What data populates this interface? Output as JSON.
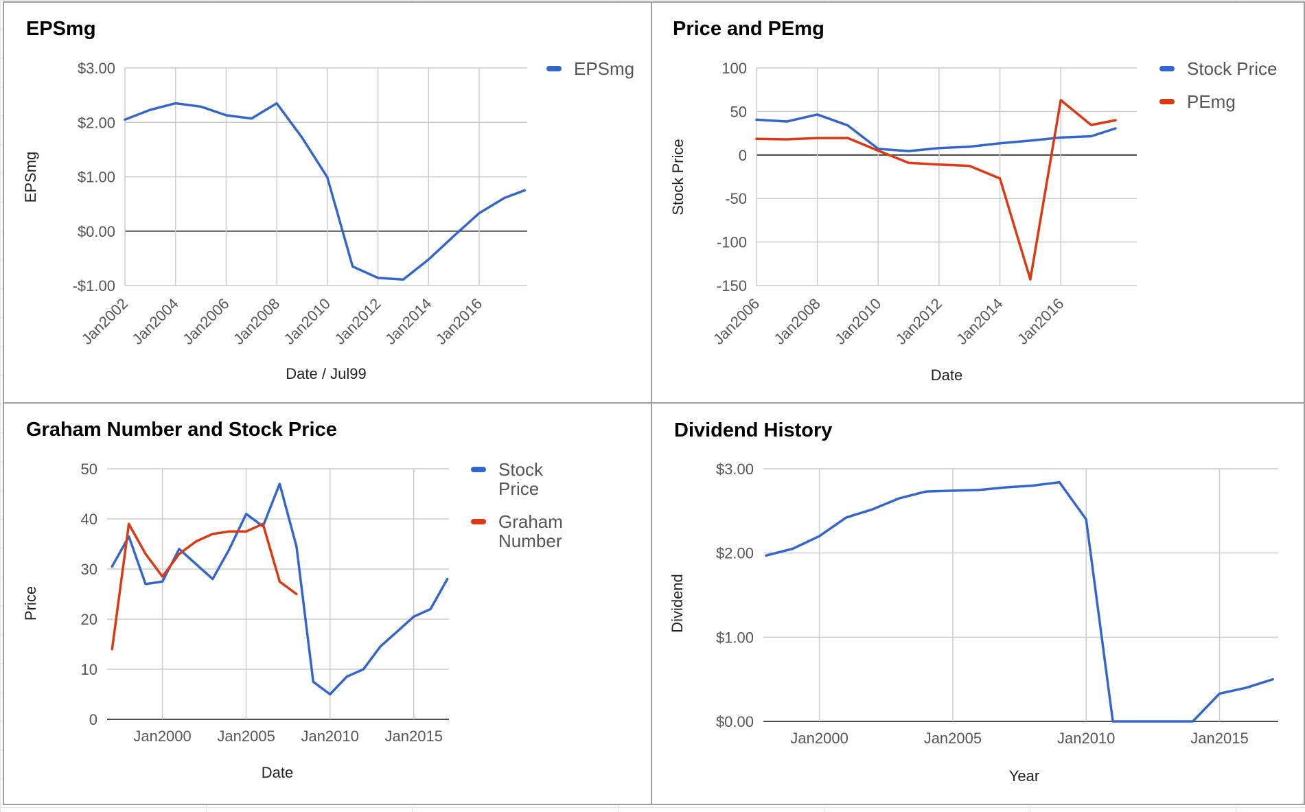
{
  "chart_data": [
    {
      "id": "epsmg",
      "type": "line",
      "title": "EPSmg",
      "xlabel": "Date / Jul99",
      "ylabel": "EPSmg",
      "x_ticks": [
        "Jan2002",
        "Jan2004",
        "Jan2006",
        "Jan2008",
        "Jan2010",
        "Jan2012",
        "Jan2014",
        "Jan2016"
      ],
      "x_range": [
        2002.0,
        2017.9
      ],
      "ylim": [
        -1.0,
        3.0
      ],
      "y_ticks": [
        -1,
        0,
        1,
        2,
        3
      ],
      "y_tick_labels": [
        "-$1.00",
        "$0.00",
        "$1.00",
        "$2.00",
        "$3.00"
      ],
      "x_tick_rotation": -45,
      "grid": true,
      "legend_position": "right",
      "series": [
        {
          "name": "EPSmg",
          "color": "#3366cc",
          "x": [
            2002.0,
            2003.0,
            2004.0,
            2005.0,
            2006.0,
            2007.0,
            2008.0,
            2009.0,
            2010.0,
            2011.0,
            2012.0,
            2013.0,
            2014.0,
            2015.0,
            2016.0,
            2017.0,
            2017.8
          ],
          "y": [
            2.05,
            2.23,
            2.35,
            2.29,
            2.13,
            2.07,
            2.35,
            1.72,
            0.99,
            -0.65,
            -0.86,
            -0.89,
            -0.52,
            -0.09,
            0.33,
            0.61,
            0.75
          ]
        }
      ]
    },
    {
      "id": "price-pemg",
      "type": "line",
      "title": "Price and PEmg",
      "xlabel": "Date",
      "ylabel": "Stock Price",
      "x_ticks": [
        "Jan2006",
        "Jan2008",
        "Jan2010",
        "Jan2012",
        "Jan2014",
        "Jan2016"
      ],
      "x_range": [
        2006.0,
        2018.5
      ],
      "ylim": [
        -150,
        100
      ],
      "y_ticks": [
        -150,
        -100,
        -50,
        0,
        50,
        100
      ],
      "y_tick_labels": [
        "-150",
        "-100",
        "-50",
        "0",
        "50",
        "100"
      ],
      "x_tick_rotation": -45,
      "grid": true,
      "legend_position": "right",
      "series": [
        {
          "name": "Stock Price",
          "color": "#3366cc",
          "x": [
            2006.0,
            2007.0,
            2008.0,
            2009.0,
            2010.0,
            2011.0,
            2012.0,
            2013.0,
            2014.0,
            2015.0,
            2016.0,
            2017.0,
            2017.8
          ],
          "y": [
            40.5,
            38.5,
            46.5,
            34.0,
            7.0,
            4.5,
            8.0,
            9.5,
            13.5,
            16.5,
            20.0,
            21.5,
            30.5
          ]
        },
        {
          "name": "PEmg",
          "color": "#dc3912",
          "x": [
            2006.0,
            2007.0,
            2008.0,
            2009.0,
            2010.0,
            2011.0,
            2012.0,
            2013.0,
            2014.0,
            2015.0,
            2016.0,
            2017.0,
            2017.8
          ],
          "y": [
            18.5,
            18.0,
            19.5,
            19.5,
            5.0,
            -9.0,
            -11.0,
            -12.5,
            -27.0,
            -143.0,
            63.0,
            34.5,
            40.0
          ]
        }
      ]
    },
    {
      "id": "graham",
      "type": "line",
      "title": "Graham Number and Stock Price",
      "xlabel": "Date",
      "ylabel": "Price",
      "x_ticks": [
        "Jan2000",
        "Jan2005",
        "Jan2010",
        "Jan2015"
      ],
      "x_range": [
        1996.7,
        2017.1
      ],
      "ylim": [
        0,
        50
      ],
      "y_ticks": [
        0,
        10,
        20,
        30,
        40,
        50
      ],
      "y_tick_labels": [
        "0",
        "10",
        "20",
        "30",
        "40",
        "50"
      ],
      "x_tick_rotation": 0,
      "grid": true,
      "legend_position": "right",
      "series": [
        {
          "name": "Stock Price",
          "color": "#3366cc",
          "x": [
            1997.0,
            1998.0,
            1999.0,
            2000.0,
            2001.0,
            2002.0,
            2003.0,
            2004.0,
            2005.0,
            2006.0,
            2007.0,
            2008.0,
            2009.0,
            2010.0,
            2011.0,
            2012.0,
            2013.0,
            2014.0,
            2015.0,
            2016.0,
            2017.0
          ],
          "y": [
            30.5,
            36.5,
            27.0,
            27.5,
            34.0,
            31.0,
            28.0,
            34.0,
            41.0,
            38.5,
            47.0,
            34.5,
            7.5,
            5.0,
            8.5,
            10.0,
            14.5,
            17.5,
            20.5,
            22.0,
            28.0
          ]
        },
        {
          "name": "Graham Number",
          "color": "#dc3912",
          "x": [
            1997.0,
            1998.0,
            1999.0,
            2000.0,
            2001.0,
            2002.0,
            2003.0,
            2004.0,
            2005.0,
            2006.0,
            2007.0,
            2008.0
          ],
          "y": [
            14.0,
            39.0,
            33.0,
            28.5,
            33.0,
            35.5,
            37.0,
            37.5,
            37.5,
            39.0,
            27.5,
            25.0
          ]
        }
      ]
    },
    {
      "id": "dividend",
      "type": "line",
      "title": "Dividend History",
      "xlabel": "Year",
      "ylabel": "Dividend",
      "x_ticks": [
        "Jan2000",
        "Jan2005",
        "Jan2010",
        "Jan2015"
      ],
      "x_range": [
        1997.9,
        2017.2
      ],
      "ylim": [
        0,
        3.0
      ],
      "y_ticks": [
        0,
        1,
        2,
        3
      ],
      "y_tick_labels": [
        "$0.00",
        "$1.00",
        "$2.00",
        "$3.00"
      ],
      "x_tick_rotation": 0,
      "grid": true,
      "legend_position": "none",
      "series": [
        {
          "name": "",
          "color": "#3366cc",
          "x": [
            1998.0,
            1999.0,
            2000.0,
            2001.0,
            2002.0,
            2003.0,
            2004.0,
            2005.0,
            2006.0,
            2007.0,
            2008.0,
            2009.0,
            2010.0,
            2011.0,
            2012.0,
            2013.0,
            2014.0,
            2015.0,
            2016.0,
            2017.0
          ],
          "y": [
            1.97,
            2.05,
            2.2,
            2.42,
            2.52,
            2.65,
            2.73,
            2.74,
            2.75,
            2.78,
            2.8,
            2.84,
            2.4,
            0.0,
            0.0,
            0.0,
            0.0,
            0.33,
            0.4,
            0.5
          ]
        }
      ]
    }
  ]
}
